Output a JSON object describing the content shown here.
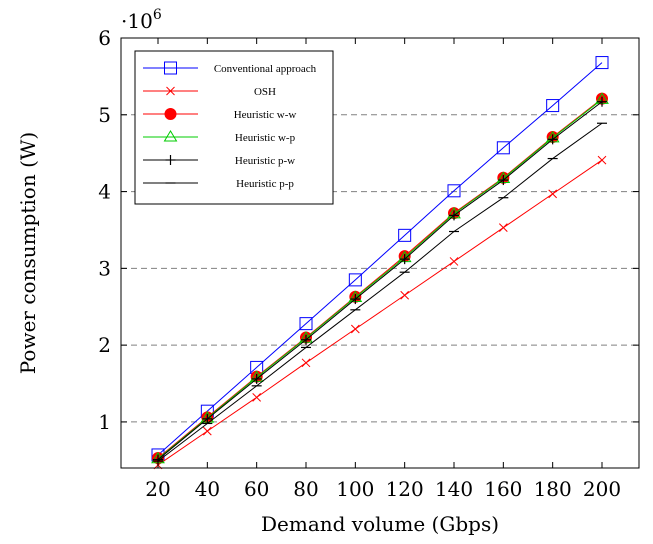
{
  "chart_data": {
    "type": "line",
    "title": "",
    "xlabel": "Demand volume (Gbps)",
    "ylabel": "Power consumption (W)",
    "y_multiplier_base": "·10",
    "y_multiplier_exp": "6",
    "x": [
      20,
      40,
      60,
      80,
      100,
      120,
      140,
      160,
      180,
      200
    ],
    "xlim": [
      5,
      215
    ],
    "ylim": [
      0.4,
      6.0
    ],
    "yticks": [
      1,
      2,
      3,
      4,
      5,
      6
    ],
    "grid": "horizontal-dashed",
    "legend_position": "top-left",
    "series": [
      {
        "name": "Conventional approach",
        "color": "#0000ff",
        "marker": "square",
        "values": [
          0.57,
          1.14,
          1.71,
          2.28,
          2.85,
          3.43,
          4.01,
          4.57,
          5.12,
          5.68
        ]
      },
      {
        "name": "OSH",
        "color": "#ff0000",
        "marker": "x",
        "values": [
          0.44,
          0.88,
          1.32,
          1.77,
          2.21,
          2.65,
          3.09,
          3.53,
          3.97,
          4.41
        ]
      },
      {
        "name": "Heuristic w-w",
        "color": "#ff0000",
        "marker": "circle-filled",
        "values": [
          0.53,
          1.06,
          1.59,
          2.1,
          2.63,
          3.16,
          3.72,
          4.18,
          4.71,
          5.21
        ]
      },
      {
        "name": "Heuristic w-p",
        "color": "#00cc00",
        "marker": "triangle",
        "values": [
          0.52,
          1.05,
          1.58,
          2.09,
          2.62,
          3.14,
          3.71,
          4.17,
          4.7,
          5.2
        ]
      },
      {
        "name": "Heuristic p-w",
        "color": "#000000",
        "marker": "plus",
        "values": [
          0.51,
          1.04,
          1.56,
          2.07,
          2.6,
          3.12,
          3.69,
          4.15,
          4.68,
          5.17
        ]
      },
      {
        "name": "Heuristic p-p",
        "color": "#000000",
        "marker": "dash",
        "values": [
          0.49,
          0.98,
          1.47,
          1.97,
          2.46,
          2.95,
          3.48,
          3.92,
          4.43,
          4.89
        ]
      }
    ]
  }
}
